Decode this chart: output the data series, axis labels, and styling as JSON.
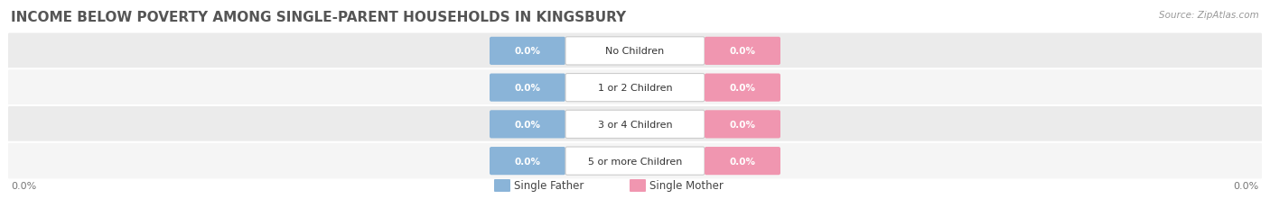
{
  "title": "INCOME BELOW POVERTY AMONG SINGLE-PARENT HOUSEHOLDS IN KINGSBURY",
  "source": "Source: ZipAtlas.com",
  "categories": [
    "No Children",
    "1 or 2 Children",
    "3 or 4 Children",
    "5 or more Children"
  ],
  "single_father_values": [
    0.0,
    0.0,
    0.0,
    0.0
  ],
  "single_mother_values": [
    0.0,
    0.0,
    0.0,
    0.0
  ],
  "father_color": "#8ab4d8",
  "mother_color": "#f096b0",
  "row_bg_color": "#ebebeb",
  "row_bg_color2": "#f5f5f5",
  "axis_label_left": "0.0%",
  "axis_label_right": "0.0%",
  "background_color": "#ffffff",
  "legend_father": "Single Father",
  "legend_mother": "Single Mother",
  "title_color": "#555555",
  "source_color": "#999999",
  "label_color": "#333333",
  "value_color": "#ffffff"
}
